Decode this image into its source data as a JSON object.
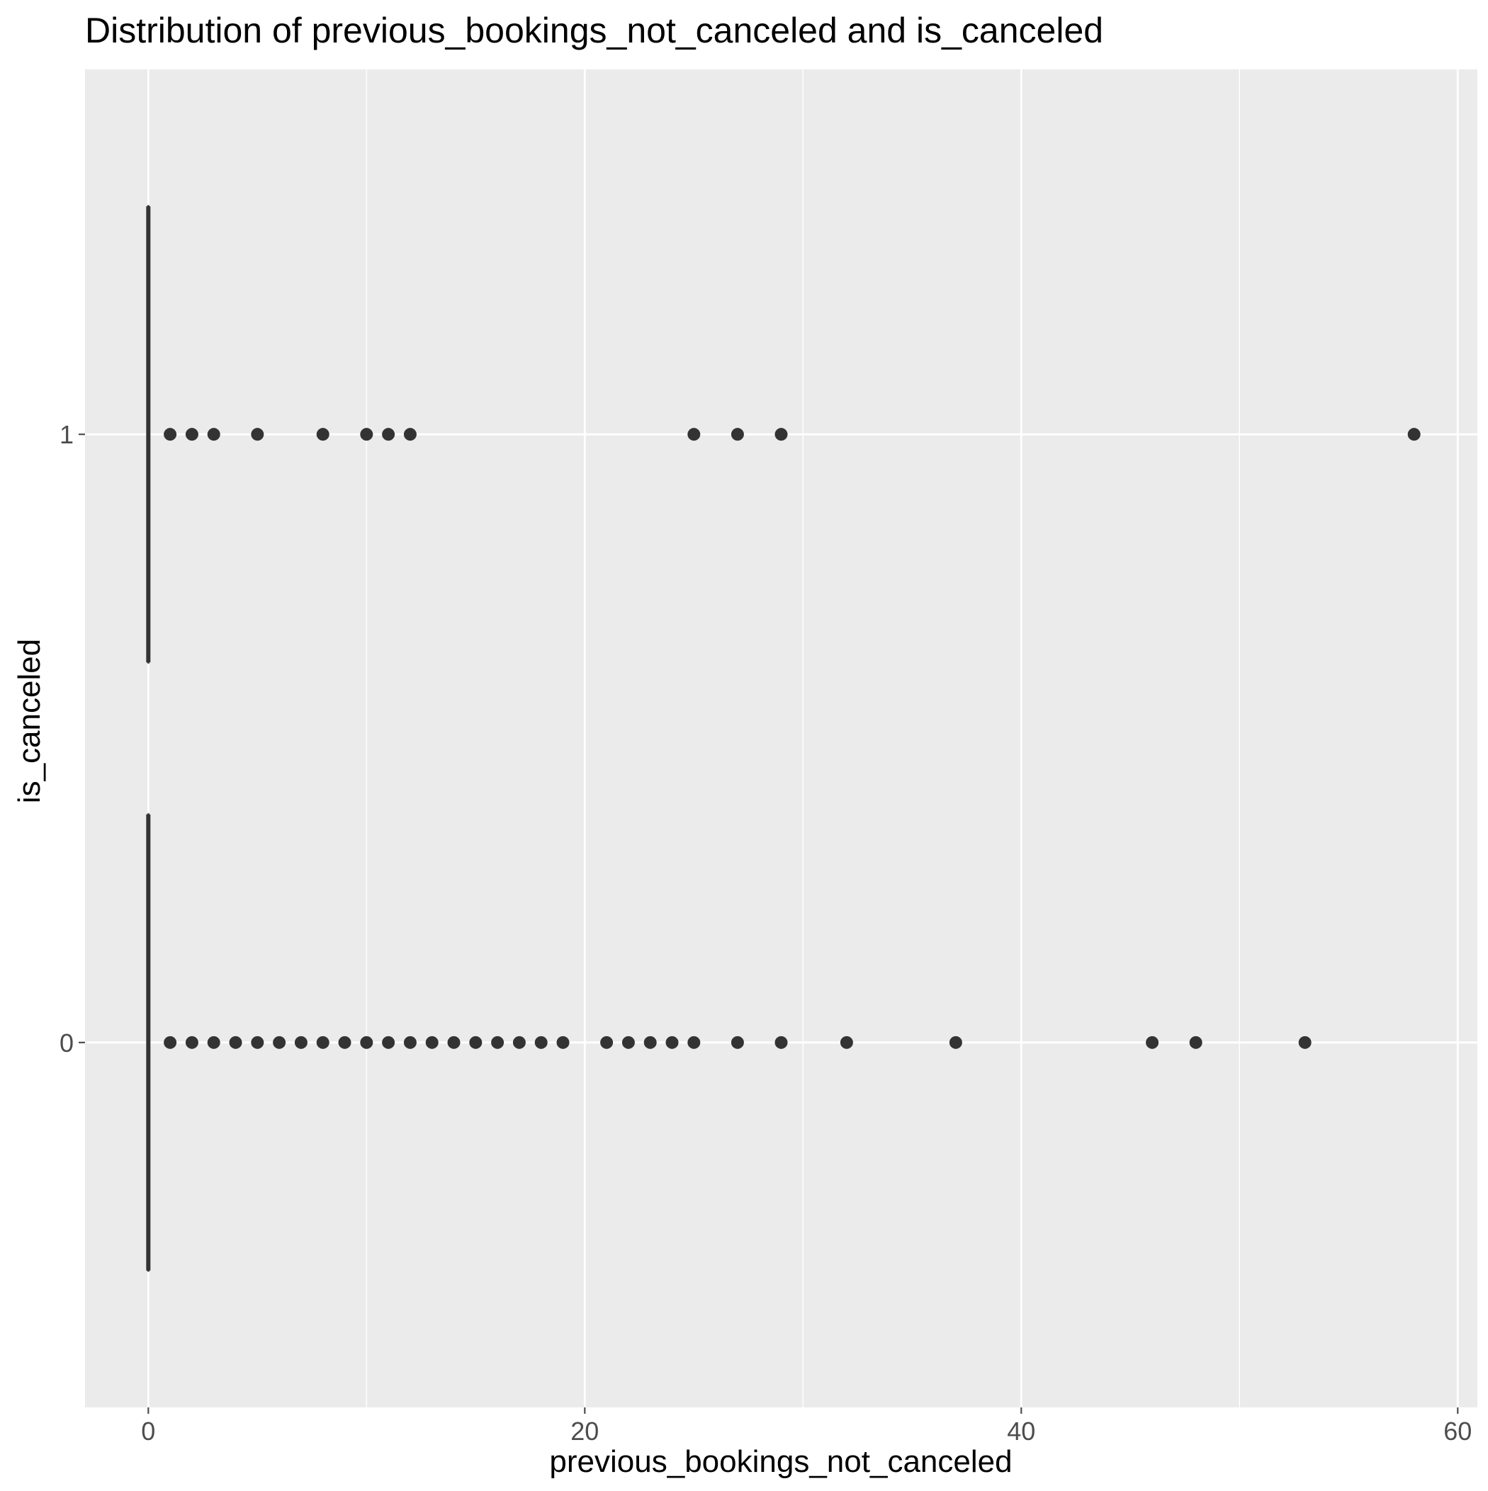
{
  "chart_data": {
    "type": "boxplot",
    "orientation": "horizontal",
    "title": "Distribution of previous_bookings_not_canceled and is_canceled",
    "xlabel": "previous_bookings_not_canceled",
    "ylabel": "is_canceled",
    "xlim": [
      -2.9,
      60.9
    ],
    "x_ticks": [
      0,
      20,
      40,
      60
    ],
    "x_tick_labels": [
      "0",
      "20",
      "40",
      "60"
    ],
    "categories": [
      "0",
      "1"
    ],
    "grid": true,
    "legend": "none",
    "colors": {
      "panel": "#ebebeb",
      "grid": "#ffffff",
      "marks": "#333333",
      "axis_text": "#4d4d4d"
    },
    "series": [
      {
        "category": "0",
        "box": {
          "min": 0,
          "q1": 0,
          "median": 0,
          "q3": 0,
          "max": 0
        },
        "outliers": [
          1,
          2,
          3,
          4,
          5,
          6,
          7,
          8,
          9,
          10,
          11,
          12,
          13,
          14,
          15,
          16,
          17,
          18,
          19,
          21,
          22,
          23,
          24,
          25,
          27,
          29,
          32,
          37,
          46,
          48,
          53
        ]
      },
      {
        "category": "1",
        "box": {
          "min": 0,
          "q1": 0,
          "median": 0,
          "q3": 0,
          "max": 0
        },
        "outliers": [
          1,
          2,
          3,
          5,
          8,
          10,
          11,
          12,
          25,
          27,
          29,
          58
        ]
      }
    ]
  }
}
